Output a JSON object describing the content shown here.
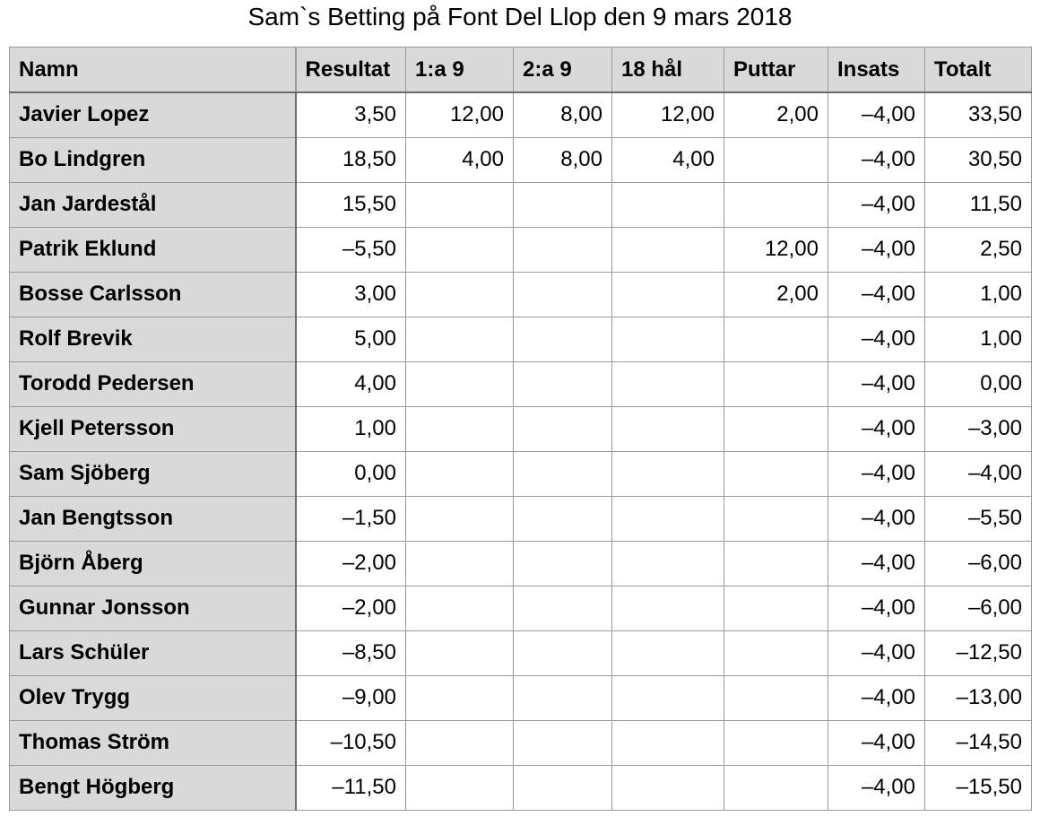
{
  "title": "Sam`s Betting på Font Del Llop den 9 mars 2018",
  "columns": [
    "Namn",
    "Resultat",
    "1:a 9",
    "2:a 9",
    "18 hål",
    "Puttar",
    "Insats",
    "Totalt"
  ],
  "rows": [
    [
      "Javier Lopez",
      "3,50",
      "12,00",
      "8,00",
      "12,00",
      "2,00",
      "–4,00",
      "33,50"
    ],
    [
      "Bo Lindgren",
      "18,50",
      "4,00",
      "8,00",
      "4,00",
      "",
      "–4,00",
      "30,50"
    ],
    [
      "Jan Jardestål",
      "15,50",
      "",
      "",
      "",
      "",
      "–4,00",
      "11,50"
    ],
    [
      "Patrik Eklund",
      "–5,50",
      "",
      "",
      "",
      "12,00",
      "–4,00",
      "2,50"
    ],
    [
      "Bosse Carlsson",
      "3,00",
      "",
      "",
      "",
      "2,00",
      "–4,00",
      "1,00"
    ],
    [
      "Rolf Brevik",
      "5,00",
      "",
      "",
      "",
      "",
      "–4,00",
      "1,00"
    ],
    [
      "Torodd Pedersen",
      "4,00",
      "",
      "",
      "",
      "",
      "–4,00",
      "0,00"
    ],
    [
      "Kjell Petersson",
      "1,00",
      "",
      "",
      "",
      "",
      "–4,00",
      "–3,00"
    ],
    [
      "Sam Sjöberg",
      "0,00",
      "",
      "",
      "",
      "",
      "–4,00",
      "–4,00"
    ],
    [
      "Jan Bengtsson",
      "–1,50",
      "",
      "",
      "",
      "",
      "–4,00",
      "–5,50"
    ],
    [
      "Björn Åberg",
      "–2,00",
      "",
      "",
      "",
      "",
      "–4,00",
      "–6,00"
    ],
    [
      "Gunnar Jonsson",
      "–2,00",
      "",
      "",
      "",
      "",
      "–4,00",
      "–6,00"
    ],
    [
      "Lars Schüler",
      "–8,50",
      "",
      "",
      "",
      "",
      "–4,00",
      "–12,50"
    ],
    [
      "Olev Trygg",
      "–9,00",
      "",
      "",
      "",
      "",
      "–4,00",
      "–13,00"
    ],
    [
      "Thomas Ström",
      "–10,50",
      "",
      "",
      "",
      "",
      "–4,00",
      "–14,50"
    ],
    [
      "Bengt Högberg",
      "–11,50",
      "",
      "",
      "",
      "",
      "–4,00",
      "–15,50"
    ]
  ]
}
